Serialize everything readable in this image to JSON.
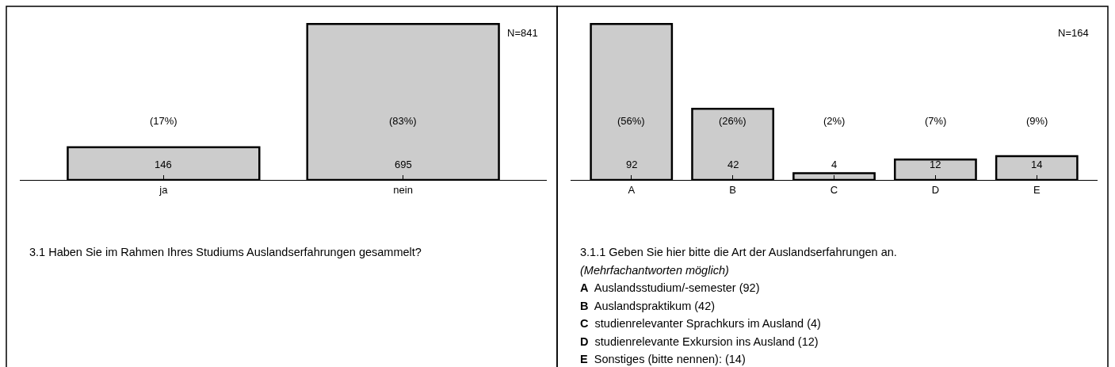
{
  "chart_data": [
    {
      "type": "bar",
      "categories": [
        "ja",
        "nein"
      ],
      "values": [
        146,
        695
      ],
      "color": "#cccccc",
      "data_labels": true,
      "xlabel": "3.1 Haben Sie im Rahmen Ihres Studiums Auslandserfahrungen gesammelt?",
      "annotations": [
        "N=841",
        "(17%)",
        "(83%)"
      ]
    },
    {
      "type": "bar",
      "categories": [
        "A",
        "B",
        "C",
        "D",
        "E"
      ],
      "values": [
        92,
        42,
        4,
        12,
        14
      ],
      "color": "#cccccc",
      "data_labels": true,
      "xlabel": "3.1.1 Geben Sie hier bitte die Art der Auslandserfahrungen an.",
      "annotations": [
        "N=164",
        "(56%)",
        "(26%)",
        "(2%)",
        "(7%)",
        "(9%)",
        "(Mehrfachantworten möglich)",
        "A Auslandsstudium/-semester (92)",
        "B Auslandspraktikum (42)",
        "C studienrelevanter Sprachkurs im Ausland (4)",
        "D studienrelevante Exkursion ins Ausland (12)",
        "E Sonstiges (bitte nennen): (14)"
      ]
    }
  ]
}
